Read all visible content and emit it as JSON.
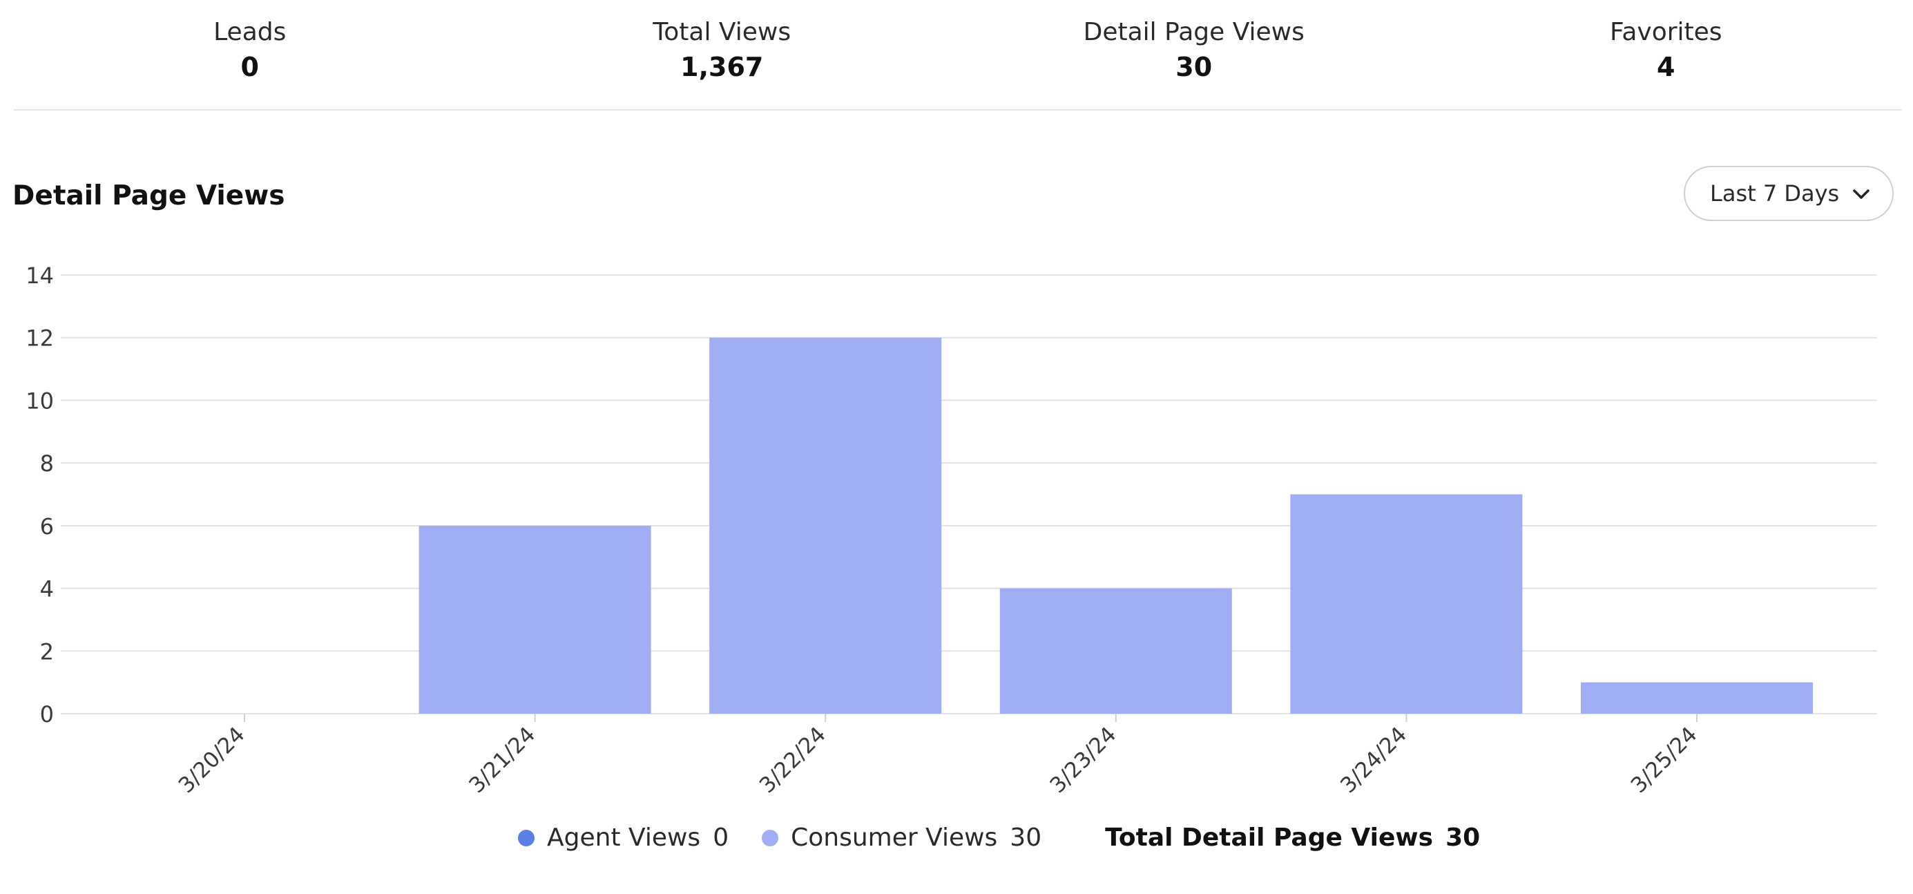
{
  "stats": [
    {
      "label": "Leads",
      "value": "0"
    },
    {
      "label": "Total Views",
      "value": "1,367"
    },
    {
      "label": "Detail Page Views",
      "value": "30"
    },
    {
      "label": "Favorites",
      "value": "4"
    }
  ],
  "section": {
    "title": "Detail Page Views",
    "range_select": {
      "value": "Last 7 Days",
      "icon": "chevron-down-icon"
    }
  },
  "colors": {
    "agent": "#5b7fe6",
    "consumer": "#a0adf4",
    "grid": "#e3e3e3",
    "axis_text": "#3a3a3a"
  },
  "chart_data": {
    "type": "bar",
    "categories": [
      "3/20/24",
      "3/21/24",
      "3/22/24",
      "3/23/24",
      "3/24/24",
      "3/25/24"
    ],
    "series": [
      {
        "name": "Agent Views",
        "values": [
          0,
          0,
          0,
          0,
          0,
          0
        ]
      },
      {
        "name": "Consumer Views",
        "values": [
          0,
          6,
          12,
          4,
          7,
          1
        ]
      }
    ],
    "ylim": [
      0,
      14
    ],
    "yticks": [
      0,
      2,
      4,
      6,
      8,
      10,
      12,
      14
    ],
    "grid": true,
    "stacked": true
  },
  "legend": {
    "items": [
      {
        "label": "Agent Views",
        "count": "0"
      },
      {
        "label": "Consumer Views",
        "count": "30"
      }
    ],
    "total_label": "Total Detail Page Views",
    "total_value": "30"
  }
}
